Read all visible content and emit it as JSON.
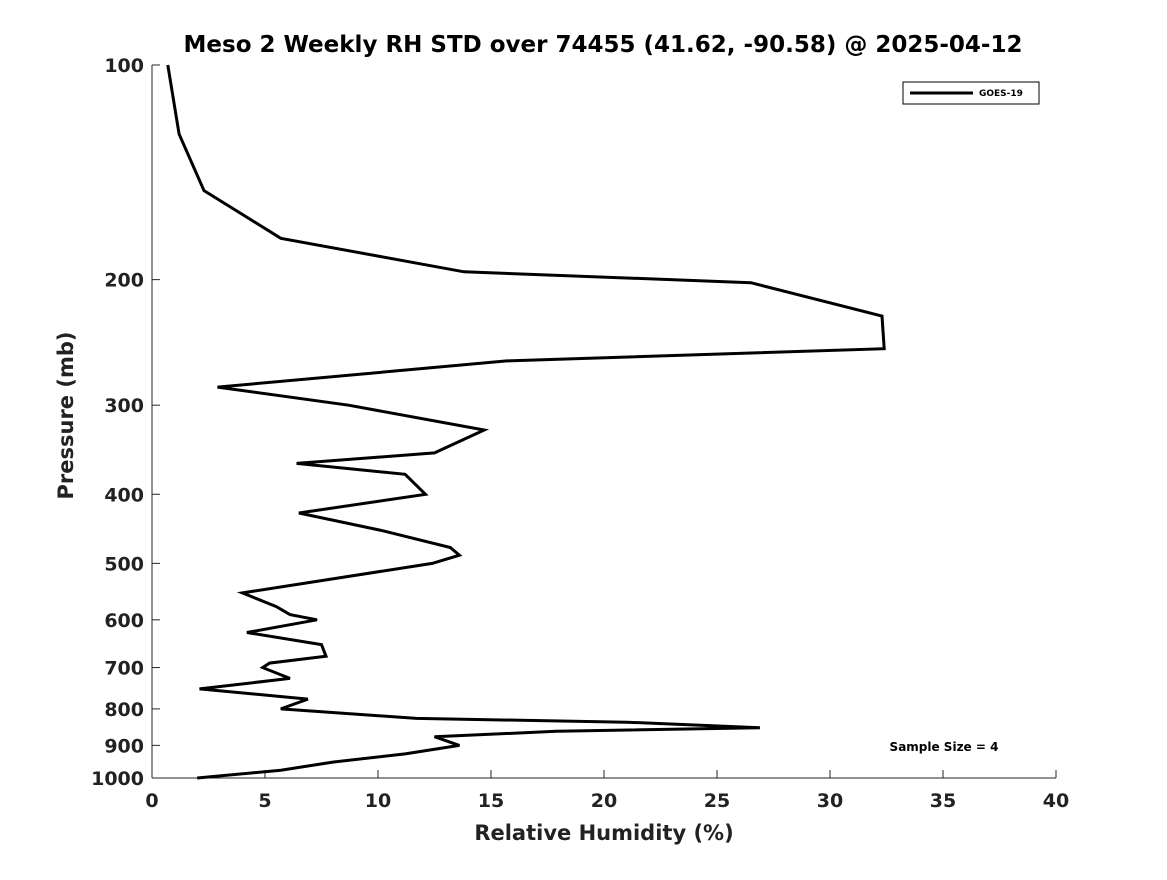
{
  "chart_data": {
    "type": "line",
    "title": "Meso 2 Weekly RH STD over 74455 (41.62, -90.58) @ 2025-04-12",
    "xlabel": "Relative Humidity (%)",
    "ylabel": "Pressure (mb)",
    "xlim": [
      0,
      40
    ],
    "ylim": [
      100,
      1000
    ],
    "y_scale": "log",
    "y_reversed": true,
    "x_ticks": [
      0,
      5,
      10,
      15,
      20,
      25,
      30,
      35,
      40
    ],
    "x_tick_labels": [
      "0",
      "5",
      "10",
      "15",
      "20",
      "25",
      "30",
      "35",
      "40"
    ],
    "y_ticks": [
      100,
      200,
      300,
      400,
      500,
      600,
      700,
      800,
      900,
      1000
    ],
    "y_tick_labels": [
      "100",
      "200",
      "300",
      "400",
      "500",
      "600",
      "700",
      "800",
      "900",
      "1000"
    ],
    "grid": false,
    "legend_position": "top-right",
    "annotation": "Sample Size = 4",
    "series": [
      {
        "name": "GOES-19",
        "color": "#000000",
        "points": [
          [
            0.7,
            100
          ],
          [
            1.2,
            125
          ],
          [
            2.3,
            150
          ],
          [
            5.7,
            175
          ],
          [
            13.8,
            195
          ],
          [
            26.5,
            202
          ],
          [
            32.3,
            225
          ],
          [
            32.4,
            250
          ],
          [
            15.7,
            260
          ],
          [
            2.9,
            283
          ],
          [
            8.7,
            300
          ],
          [
            14.7,
            325
          ],
          [
            12.5,
            350
          ],
          [
            6.4,
            362
          ],
          [
            11.2,
            375
          ],
          [
            12.1,
            400
          ],
          [
            6.5,
            425
          ],
          [
            10.2,
            450
          ],
          [
            13.2,
            475
          ],
          [
            13.6,
            487
          ],
          [
            12.4,
            500
          ],
          [
            4.0,
            550
          ],
          [
            5.5,
            575
          ],
          [
            6.1,
            590
          ],
          [
            7.3,
            600
          ],
          [
            4.2,
            625
          ],
          [
            7.5,
            650
          ],
          [
            7.7,
            675
          ],
          [
            5.2,
            690
          ],
          [
            4.9,
            700
          ],
          [
            6.1,
            725
          ],
          [
            2.1,
            750
          ],
          [
            6.9,
            775
          ],
          [
            5.7,
            800
          ],
          [
            11.7,
            825
          ],
          [
            21.0,
            835
          ],
          [
            26.9,
            850
          ],
          [
            17.9,
            860
          ],
          [
            12.5,
            875
          ],
          [
            13.6,
            900
          ],
          [
            11.2,
            925
          ],
          [
            8.0,
            950
          ],
          [
            5.7,
            975
          ],
          [
            2.0,
            1000
          ]
        ]
      }
    ]
  }
}
